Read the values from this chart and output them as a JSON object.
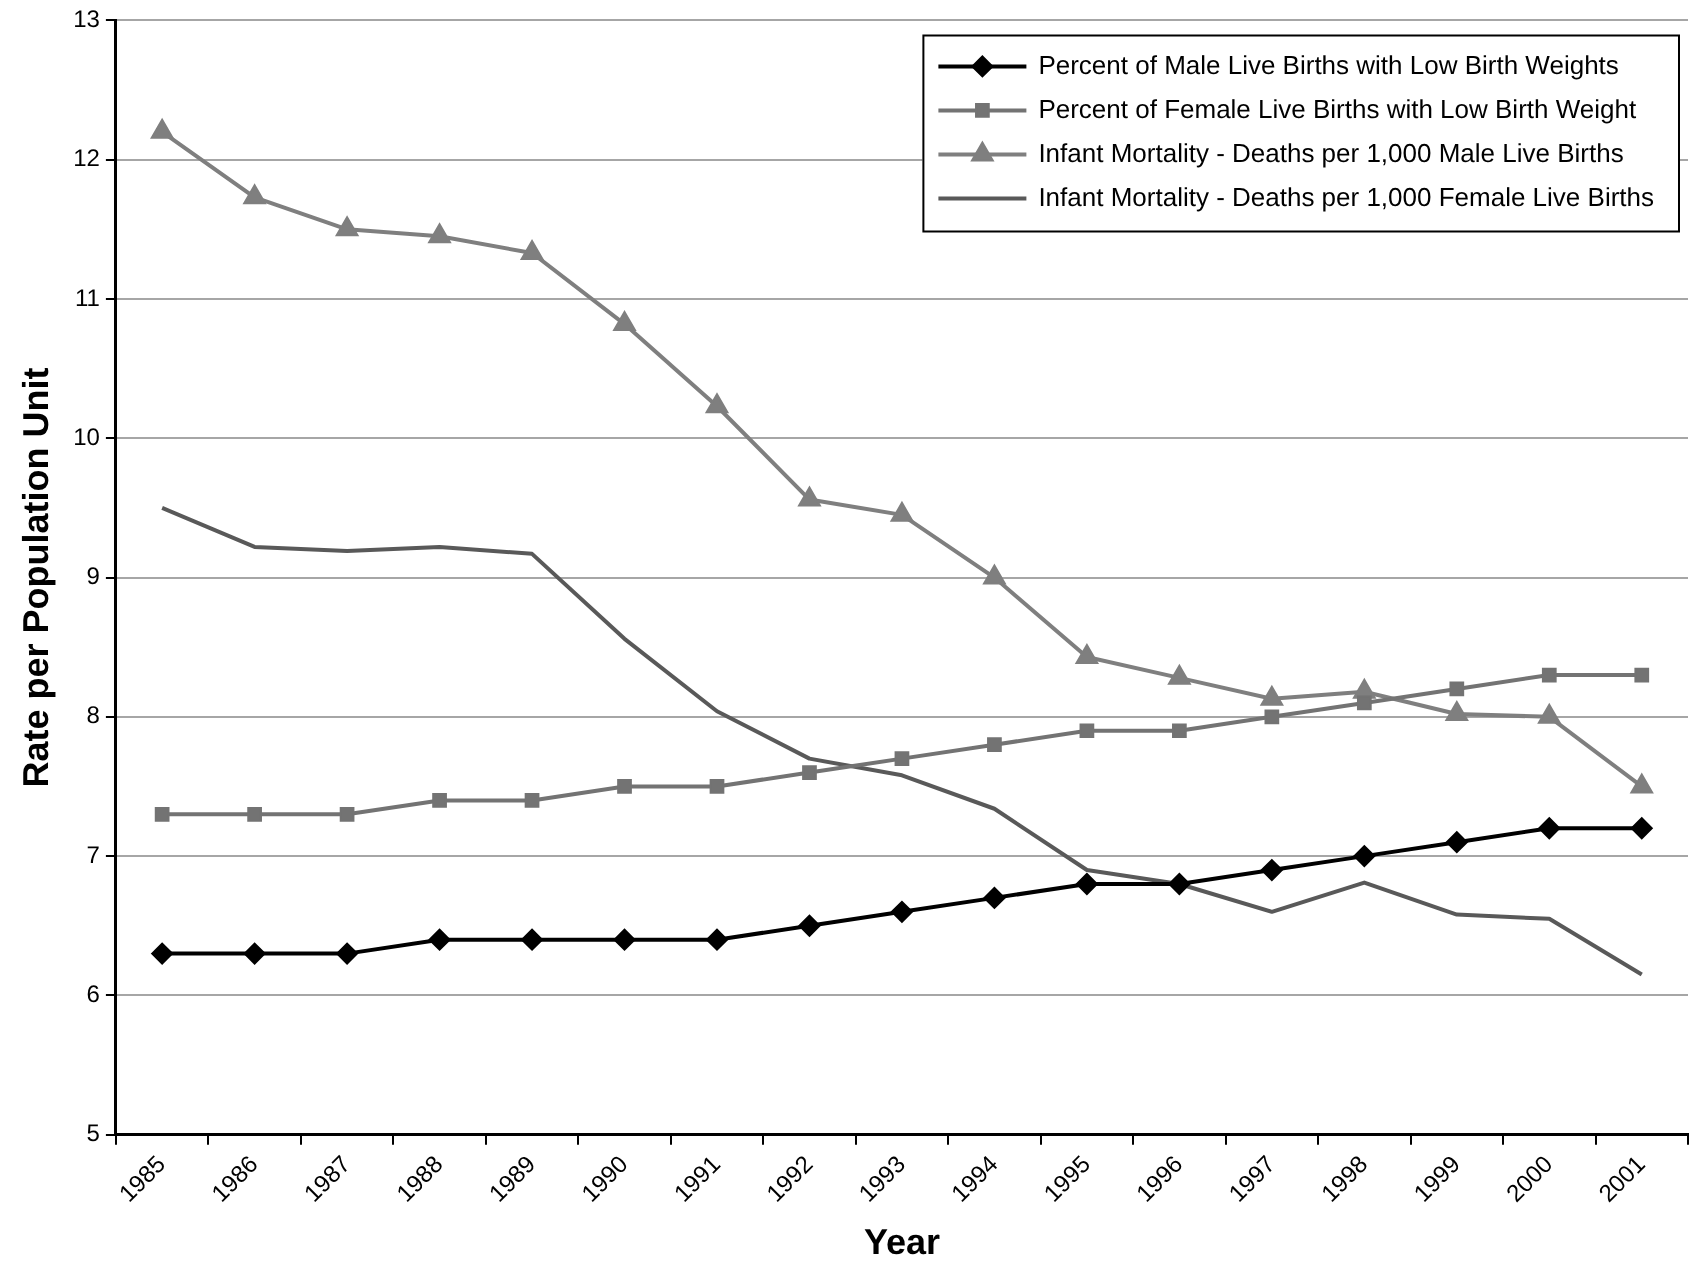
{
  "chart_data": {
    "type": "line",
    "xlabel": "Year",
    "ylabel": "Rate per Population Unit",
    "categories": [
      "1985",
      "1986",
      "1987",
      "1988",
      "1989",
      "1990",
      "1991",
      "1992",
      "1993",
      "1994",
      "1995",
      "1996",
      "1997",
      "1998",
      "1999",
      "2000",
      "2001"
    ],
    "series": [
      {
        "name": "Percent of Male Live Births with Low Birth Weights",
        "color": "#000000",
        "marker": "diamond",
        "values": [
          6.3,
          6.3,
          6.3,
          6.4,
          6.4,
          6.4,
          6.4,
          6.5,
          6.6,
          6.7,
          6.8,
          6.8,
          6.9,
          7.0,
          7.1,
          7.2,
          7.2
        ]
      },
      {
        "name": "Percent of Female Live Births with Low Birth Weight",
        "color": "#737373",
        "marker": "square",
        "values": [
          7.3,
          7.3,
          7.3,
          7.4,
          7.4,
          7.5,
          7.5,
          7.6,
          7.7,
          7.8,
          7.9,
          7.9,
          8.0,
          8.1,
          8.2,
          8.3,
          8.3
        ]
      },
      {
        "name": "Infant Mortality - Deaths per 1,000 Male Live Births",
        "color": "#7f7f7f",
        "marker": "triangle",
        "values": [
          12.2,
          11.73,
          11.5,
          11.45,
          11.33,
          10.82,
          10.23,
          9.56,
          9.45,
          9.0,
          8.43,
          8.28,
          8.13,
          8.18,
          8.02,
          8.0,
          7.5
        ]
      },
      {
        "name": "Infant Mortality - Deaths per 1,000 Female Live Births",
        "color": "#595959",
        "marker": "none",
        "values": [
          9.5,
          9.22,
          9.19,
          9.22,
          9.17,
          8.56,
          8.04,
          7.7,
          7.58,
          7.34,
          6.9,
          6.8,
          6.6,
          6.81,
          6.58,
          6.55,
          6.15
        ]
      }
    ],
    "ylim": [
      5,
      13
    ],
    "yticks": [
      5,
      6,
      7,
      8,
      9,
      10,
      11,
      12,
      13
    ],
    "grid": "y",
    "legend": "top right",
    "line_style": "solid"
  }
}
